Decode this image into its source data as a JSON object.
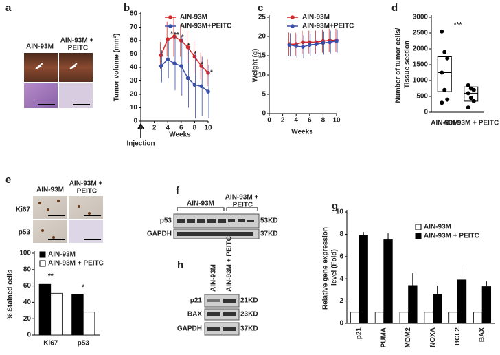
{
  "panels": {
    "a": {
      "label": "a",
      "groups": [
        "AIN-93M",
        "AIN-93M + PEITC"
      ]
    },
    "e": {
      "label": "e",
      "groups": [
        "AIN-93M",
        "AIN-93M + PEITC"
      ],
      "rows": [
        "Ki67",
        "p53"
      ]
    },
    "f": {
      "label": "f",
      "groups": [
        "AIN-93M",
        "AIN-93M + PEITC"
      ],
      "bands": [
        {
          "name": "p53",
          "size": "53KD"
        },
        {
          "name": "GAPDH",
          "size": "37KD"
        }
      ]
    },
    "h": {
      "label": "h",
      "groups": [
        "AIN-93M",
        "AIN-93M + PEITC"
      ],
      "bands": [
        {
          "name": "p21",
          "size": "21KD"
        },
        {
          "name": "BAX",
          "size": "23KD"
        },
        {
          "name": "GAPDH",
          "size": "37KD"
        }
      ]
    }
  },
  "chart_data": [
    {
      "label": "b",
      "type": "line",
      "ylabel": "Tumor volume (mm³)",
      "xlabel": "Weeks",
      "note": "Injection",
      "xlim": [
        0,
        10
      ],
      "xticks": [
        0,
        2,
        4,
        6,
        8,
        10
      ],
      "ylim": [
        0,
        80
      ],
      "yticks": [
        0,
        10,
        20,
        30,
        40,
        50,
        60,
        70,
        80
      ],
      "x": [
        3,
        4,
        5,
        6,
        7,
        8,
        9,
        10
      ],
      "series": [
        {
          "name": "AIN-93M",
          "color": "#d62728",
          "values": [
            49,
            61,
            63,
            60,
            55,
            48,
            41,
            36
          ],
          "errors": [
            10,
            13,
            15,
            12,
            12,
            12,
            10,
            10
          ]
        },
        {
          "name": "AIN-93M+PEITC",
          "color": "#3a4fa8",
          "values": [
            41,
            46,
            43,
            41,
            32,
            27,
            26,
            22
          ],
          "errors": [
            12,
            14,
            20,
            22,
            22,
            25,
            22,
            20
          ]
        }
      ],
      "annotations": [
        {
          "text": "*",
          "x": 4.6,
          "y": 65
        },
        {
          "text": "**",
          "x": 5.3,
          "y": 64
        },
        {
          "text": "*",
          "x": 6.2,
          "y": 62
        },
        {
          "text": "*",
          "x": 7.1,
          "y": 56
        },
        {
          "text": "*",
          "x": 8.1,
          "y": 50
        },
        {
          "text": "*",
          "x": 9.1,
          "y": 42
        },
        {
          "text": "*",
          "x": 10.5,
          "y": 36
        }
      ]
    },
    {
      "label": "c",
      "type": "line",
      "ylabel": "Weight (g)",
      "xlabel": "Weeks",
      "xlim": [
        0,
        10
      ],
      "xticks": [
        0,
        2,
        4,
        6,
        8,
        10
      ],
      "ylim": [
        0,
        25
      ],
      "yticks": [
        0,
        5,
        10,
        15,
        20,
        25
      ],
      "x": [
        3,
        4,
        5,
        6,
        7,
        8,
        9,
        10
      ],
      "series": [
        {
          "name": "AIN-93M",
          "color": "#d62728",
          "values": [
            18,
            18,
            18.5,
            18.5,
            18.5,
            18.8,
            19,
            19
          ],
          "errors": [
            3,
            3,
            3,
            3,
            3,
            3,
            3,
            3
          ]
        },
        {
          "name": "AIN-93M+PEITC",
          "color": "#3a4fa8",
          "values": [
            17.8,
            17.5,
            17.3,
            17.8,
            18,
            18.3,
            18.5,
            18.8
          ],
          "errors": [
            3,
            3,
            3,
            3,
            3,
            3,
            3,
            3
          ]
        }
      ]
    },
    {
      "label": "d",
      "type": "box",
      "ylabel": "Number of tumor cells/ Tissue section",
      "ylim": [
        0,
        3000
      ],
      "yticks": [
        0,
        500,
        1000,
        1500,
        2000,
        2500,
        3000
      ],
      "categories": [
        "AIN-93M",
        "AIN-93M + PEITC"
      ],
      "points": [
        [
          2550,
          1900,
          1700,
          1250,
          700,
          400,
          300
        ],
        [
          850,
          750,
          700,
          600,
          450,
          350,
          150
        ]
      ],
      "boxes": [
        {
          "q1": 650,
          "median": 1250,
          "q3": 1750
        },
        {
          "q1": 350,
          "median": 600,
          "q3": 800
        }
      ],
      "annotations": [
        {
          "text": "***",
          "x": 0.5,
          "y": 2750
        }
      ]
    },
    {
      "type": "bar",
      "ylabel": "% Stained cells",
      "ylim": [
        0,
        100
      ],
      "yticks": [
        0,
        20,
        40,
        60,
        80,
        100
      ],
      "categories": [
        "Ki67",
        "p53"
      ],
      "series": [
        {
          "name": "AIN-93M",
          "color": "#000000",
          "values": [
            62,
            50
          ]
        },
        {
          "name": "AIN-93M + PEITC",
          "color": "#ffffff",
          "values": [
            51,
            28
          ]
        }
      ],
      "annotations": [
        {
          "text": "**",
          "x": 0,
          "y": 72
        },
        {
          "text": "*",
          "x": 1,
          "y": 58
        }
      ]
    },
    {
      "label": "g",
      "type": "bar",
      "ylabel": "Relative gene expression level (Fold)",
      "ylim": [
        0,
        10
      ],
      "yticks": [
        0,
        2,
        4,
        6,
        8,
        10
      ],
      "categories": [
        "p21",
        "PUMA",
        "MDM2",
        "NOXA",
        "BCL2",
        "BAX"
      ],
      "series": [
        {
          "name": "AIN-93M",
          "color": "#ffffff",
          "values": [
            1,
            1,
            1,
            1,
            1,
            1
          ]
        },
        {
          "name": "AIN-93M + PEITC",
          "color": "#000000",
          "values": [
            7.9,
            7.5,
            3.4,
            2.6,
            3.9,
            3.3
          ],
          "errors": [
            0.3,
            0.6,
            1.1,
            0.8,
            1.4,
            0.5
          ]
        }
      ]
    }
  ]
}
